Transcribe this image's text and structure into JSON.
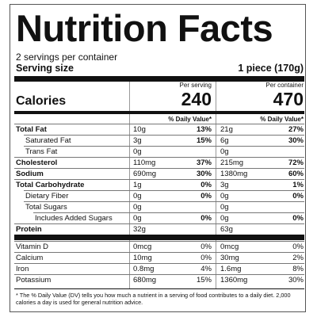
{
  "label": {
    "title": "Nutrition Facts",
    "servings": "2 servings per container",
    "serving_size_label": "Serving size",
    "serving_size": "1 piece (170g)",
    "per_serving": "Per serving",
    "per_container": "Per container",
    "calories_label": "Calories",
    "calories_serving": 240,
    "calories_container": 470,
    "dv_header_serving": "% Daily Value*",
    "dv_header_container": "% Daily Value*",
    "nutrients": [
      {
        "name": "Total Fat",
        "serving": {
          "amount": "10g",
          "dv": "13%"
        },
        "container": {
          "amount": "21g",
          "dv": "27%"
        }
      },
      {
        "name": "Saturated Fat",
        "serving": {
          "amount": "3g",
          "dv": "15%"
        },
        "container": {
          "amount": "6g",
          "dv": "30%"
        }
      },
      {
        "name": "Trans Fat",
        "serving": {
          "amount": "0g"
        },
        "container": {
          "amount": "0g"
        }
      },
      {
        "name": "Cholesterol",
        "serving": {
          "amount": "110mg",
          "dv": "37%"
        },
        "container": {
          "amount": "215mg",
          "dv": "72%"
        }
      },
      {
        "name": "Sodium",
        "serving": {
          "amount": "690mg",
          "dv": "30%"
        },
        "container": {
          "amount": "1380mg",
          "dv": "60%"
        }
      },
      {
        "name": "Total Carbohydrate",
        "serving": {
          "amount": "1g",
          "dv": "0%"
        },
        "container": {
          "amount": "3g",
          "dv": "1%"
        }
      },
      {
        "name": "Dietary Fiber",
        "serving": {
          "amount": "0g",
          "dv": "0%"
        },
        "container": {
          "amount": "0g",
          "dv": "0%"
        }
      },
      {
        "name": "Total Sugars",
        "serving": {
          "amount": "0g"
        },
        "container": {
          "amount": "0g"
        }
      },
      {
        "name": "Includes Added Sugars",
        "serving": {
          "amount": "0g",
          "dv": "0%"
        },
        "container": {
          "amount": "0g",
          "dv": "0%"
        }
      },
      {
        "name": "Protein",
        "serving": {
          "amount": "32g"
        },
        "container": {
          "amount": "63g"
        }
      }
    ],
    "vitamins": [
      {
        "name": "Vitamin D",
        "serving": {
          "amount": "0mcg",
          "dv": "0%"
        },
        "container": {
          "amount": "0mcg",
          "dv": "0%"
        }
      },
      {
        "name": "Calcium",
        "serving": {
          "amount": "10mg",
          "dv": "0%"
        },
        "container": {
          "amount": "30mg",
          "dv": "2%"
        }
      },
      {
        "name": "Iron",
        "serving": {
          "amount": "0.8mg",
          "dv": "4%"
        },
        "container": {
          "amount": "1.6mg",
          "dv": "8%"
        }
      },
      {
        "name": "Potassium",
        "serving": {
          "amount": "680mg",
          "dv": "15%"
        },
        "container": {
          "amount": "1360mg",
          "dv": "30%"
        }
      }
    ],
    "footnote": "* The % Daily Value (DV) tells you how much a nutrient in  a serving of food contributes to a daily diet. 2,000 calories a day is used for general nutrition advice."
  }
}
